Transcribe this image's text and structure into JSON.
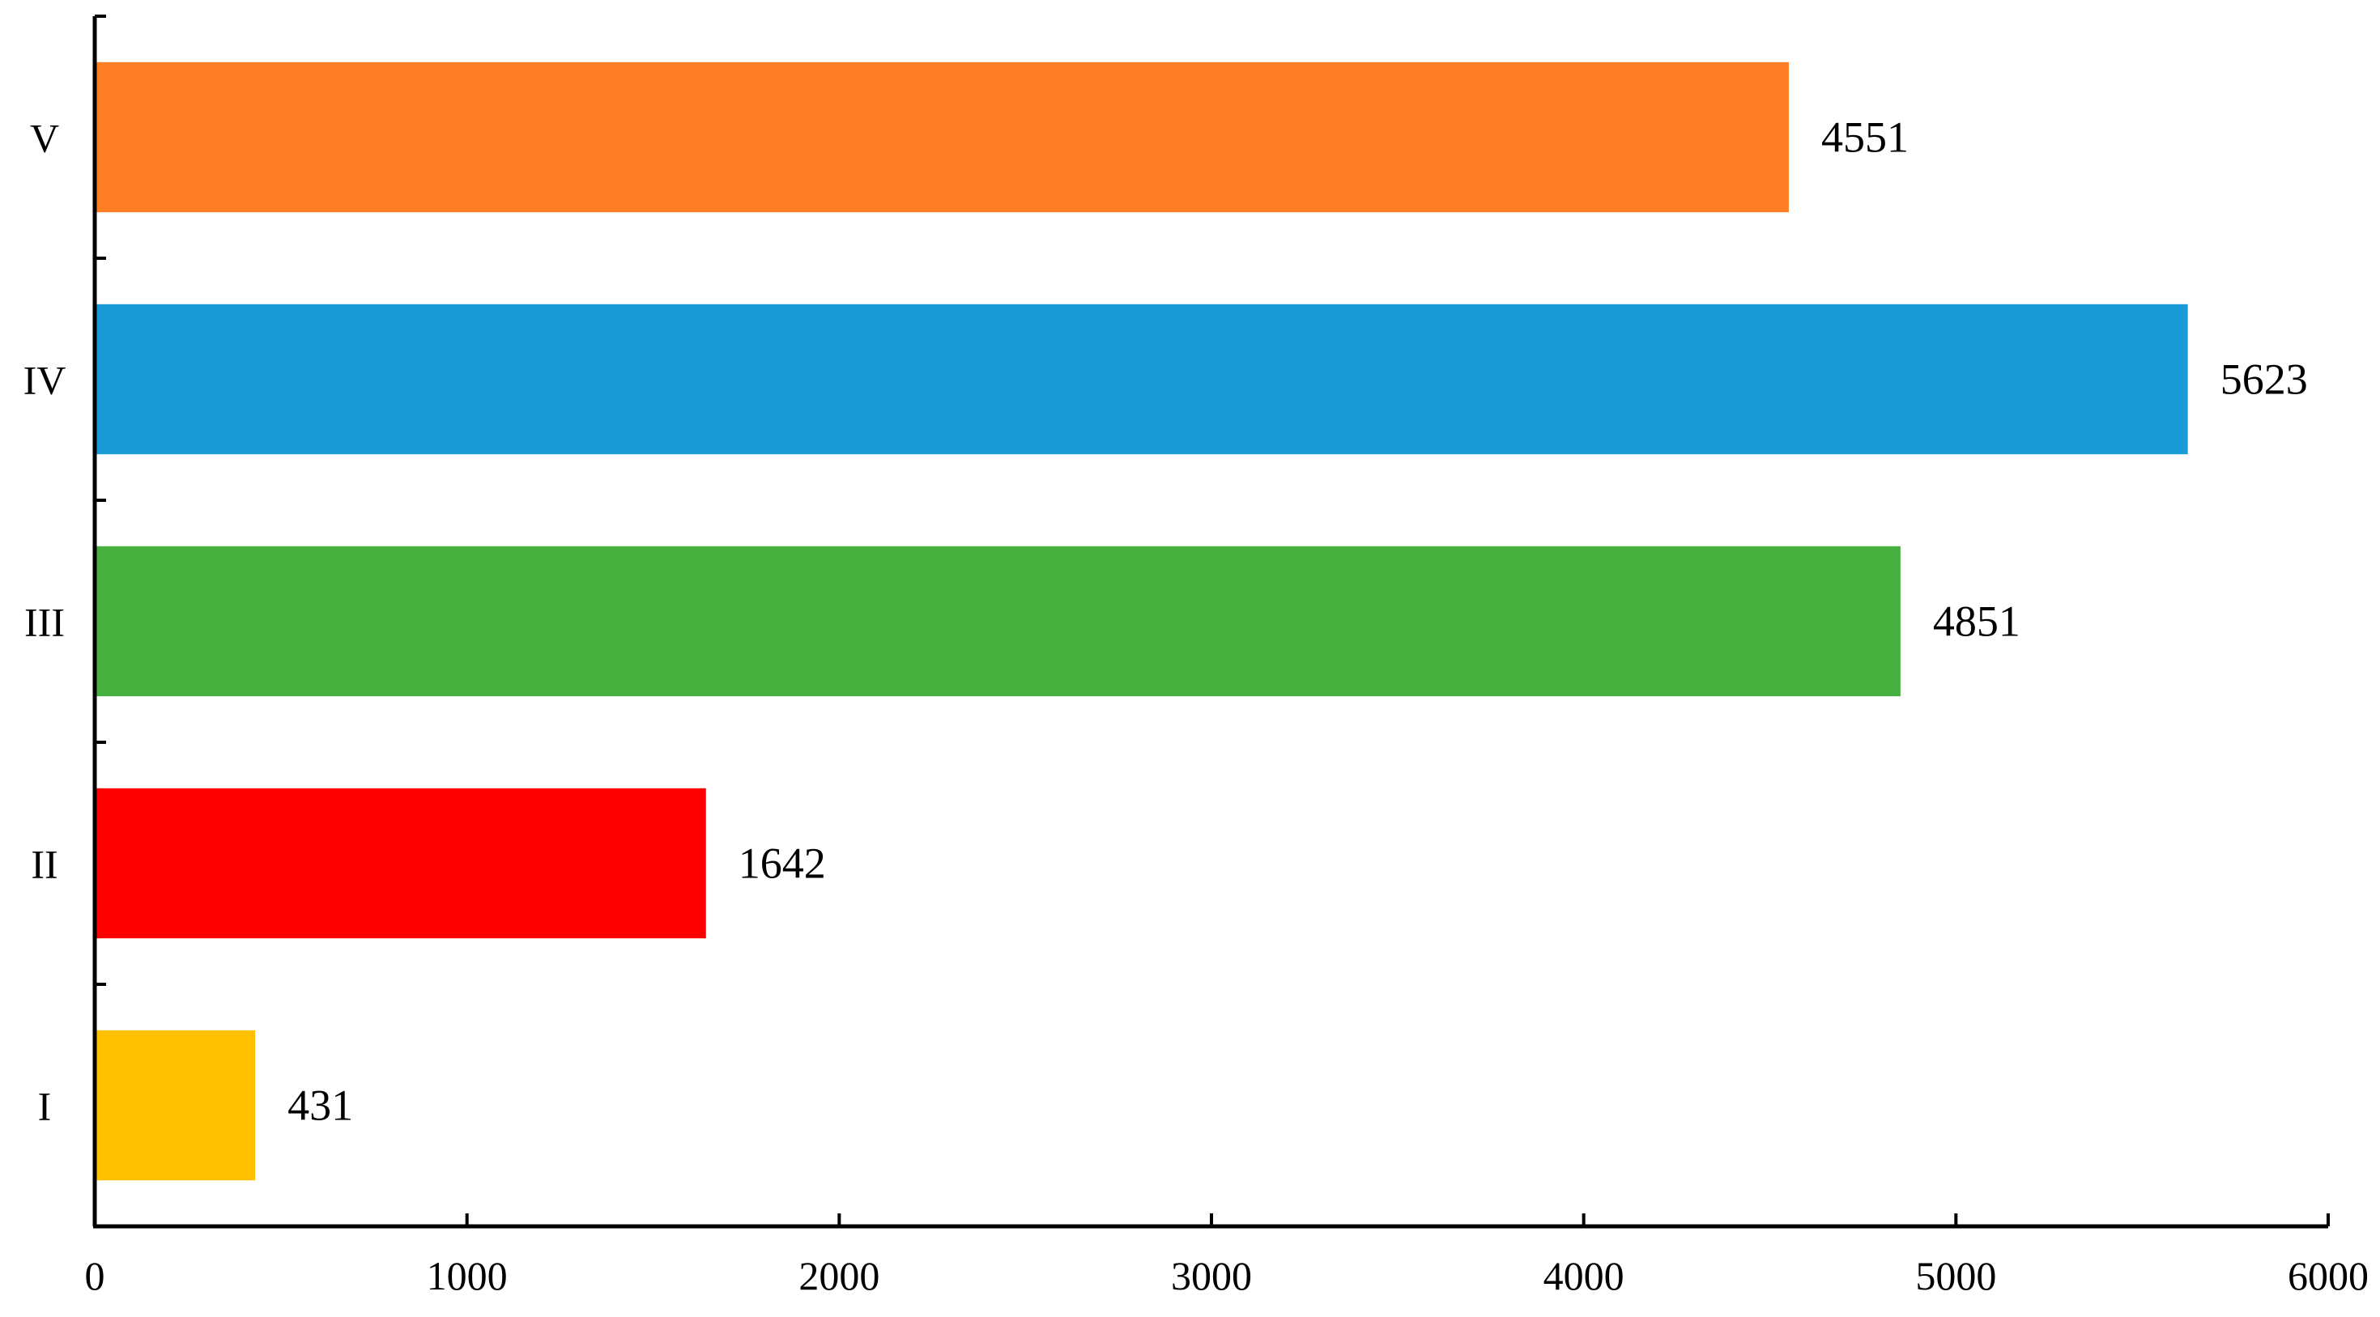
{
  "chart_data": {
    "type": "bar",
    "orientation": "horizontal",
    "categories": [
      "I",
      "II",
      "III",
      "IV",
      "V"
    ],
    "values": [
      431,
      1642,
      4851,
      5623,
      4551
    ],
    "data_labels": [
      "431",
      "1642",
      "4851",
      "5623",
      "4551"
    ],
    "colors": [
      "#FFC000",
      "#FF0000",
      "#45B03E",
      "#1A9BD7",
      "#FF7F27"
    ],
    "title": "",
    "xlabel": "",
    "ylabel": "",
    "xlim": [
      0,
      6000
    ],
    "xticks": [
      0,
      1000,
      2000,
      3000,
      4000,
      5000,
      6000
    ],
    "xtick_labels": [
      "0",
      "1000",
      "2000",
      "3000",
      "4000",
      "5000",
      "6000"
    ],
    "grid": false,
    "legend": "none"
  }
}
